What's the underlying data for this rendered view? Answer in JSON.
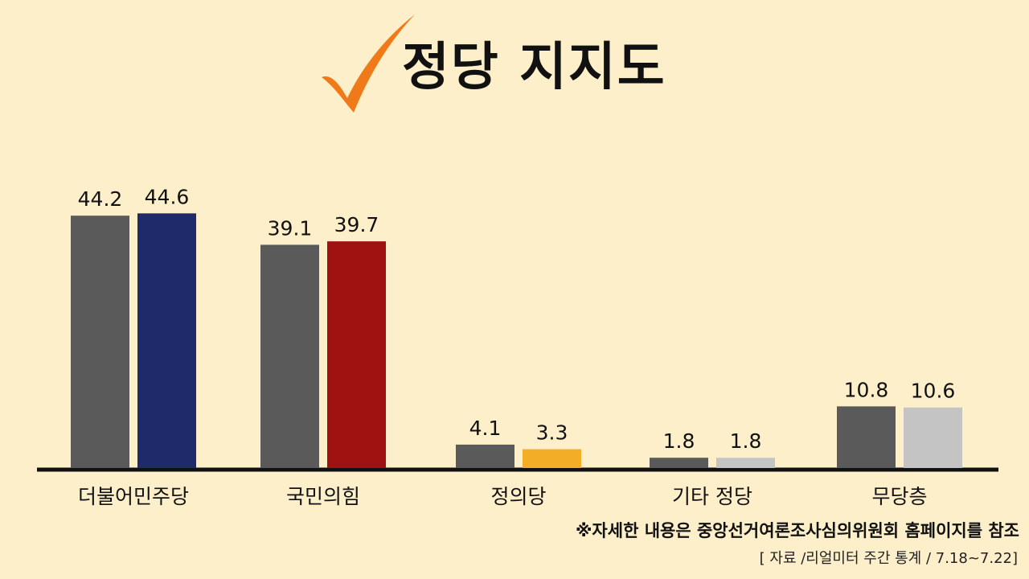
{
  "title": "정당 지지도",
  "note": "※자세한 내용은 중앙선거여론조사심의위원회 홈페이지를 참조",
  "source": "[ 자료 /리얼미터 주간 통계 / 7.18~7.22]",
  "icons": {
    "title_icon": "check-icon"
  },
  "colors": {
    "background": "#fdefca",
    "check": "#f07a1a",
    "previous_bar": "#5a5a5a",
    "axis": "#111111"
  },
  "chart_data": {
    "type": "bar",
    "title": "정당 지지도",
    "xlabel": "",
    "ylabel": "",
    "ylim": [
      0,
      50
    ],
    "grid": false,
    "legend": "none",
    "categories": [
      "더불어민주당",
      "국민의힘",
      "정의당",
      "기타 정당",
      "무당층"
    ],
    "series": [
      {
        "values": [
          44.2,
          39.1,
          4.1,
          1.8,
          10.8
        ],
        "labels": [
          "44.2",
          "39.1",
          "4.1",
          "1.8",
          "10.8"
        ],
        "colors": [
          "#5a5a5a",
          "#5a5a5a",
          "#5a5a5a",
          "#5a5a5a",
          "#5a5a5a"
        ]
      },
      {
        "values": [
          44.6,
          39.7,
          3.3,
          1.8,
          10.6
        ],
        "labels": [
          "44.6",
          "39.7",
          "3.3",
          "1.8",
          "10.6"
        ],
        "colors": [
          "#1f2a6b",
          "#a01212",
          "#f4ad26",
          "#c4c4c4",
          "#c4c4c4"
        ]
      }
    ]
  }
}
